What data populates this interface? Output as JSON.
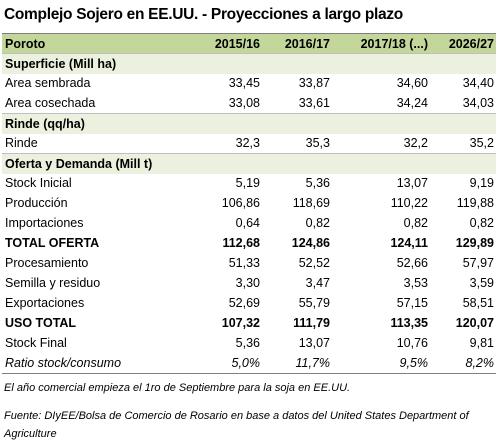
{
  "title": "Complejo Sojero en EE.UU. - Proyecciones a largo plazo",
  "table": {
    "header": [
      "Poroto",
      "2015/16",
      "2016/17",
      "2017/18  (...)",
      "2026/27"
    ],
    "sections": [
      {
        "title": "Superficie (Mill ha)",
        "rows": [
          {
            "cells": [
              "Area sembrada",
              "33,45",
              "33,87",
              "34,60",
              "34,40"
            ]
          },
          {
            "cells": [
              "Area cosechada",
              "33,08",
              "33,61",
              "34,24",
              "34,03"
            ]
          }
        ]
      },
      {
        "title": "Rinde (qq/ha)",
        "rows": [
          {
            "cells": [
              "Rinde",
              "32,3",
              "35,3",
              "32,2",
              "35,2"
            ]
          }
        ]
      },
      {
        "title": "Oferta y Demanda (Mill t)",
        "rows": [
          {
            "cells": [
              "Stock Inicial",
              "5,19",
              "5,36",
              "13,07",
              "9,19"
            ]
          },
          {
            "cells": [
              "Producción",
              "106,86",
              "118,69",
              "110,22",
              "119,88"
            ]
          },
          {
            "cells": [
              "Importaciones",
              "0,64",
              "0,82",
              "0,82",
              "0,82"
            ]
          },
          {
            "cells": [
              "TOTAL OFERTA",
              "112,68",
              "124,86",
              "124,11",
              "129,89"
            ],
            "style": "bold"
          },
          {
            "cells": [
              "Procesamiento",
              "51,33",
              "52,52",
              "52,66",
              "57,97"
            ]
          },
          {
            "cells": [
              "Semilla y residuo",
              "3,30",
              "3,47",
              "3,53",
              "3,59"
            ]
          },
          {
            "cells": [
              "Exportaciones",
              "52,69",
              "55,79",
              "57,15",
              "58,51"
            ]
          },
          {
            "cells": [
              "USO TOTAL",
              "107,32",
              "111,79",
              "113,35",
              "120,07"
            ],
            "style": "bold"
          },
          {
            "cells": [
              "Stock Final",
              "5,36",
              "13,07",
              "10,76",
              "9,81"
            ]
          },
          {
            "cells": [
              "Ratio stock/consumo",
              "5,0%",
              "11,7%",
              "9,5%",
              "8,2%"
            ],
            "style": "italic"
          }
        ]
      }
    ]
  },
  "footnotes": [
    "El año comercial empieza el 1ro de Septiembre para la soja en EE.UU.",
    "Fuente: DIyEE/Bolsa de Comercio de Rosario en base a datos del United States Department of Agriculture"
  ]
}
